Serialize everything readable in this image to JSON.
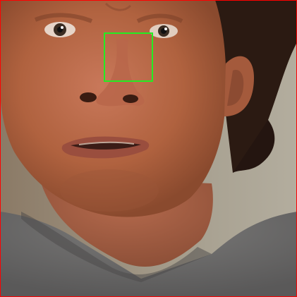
{
  "image": {
    "subject": "face-portrait",
    "colors": {
      "frame": "#ff0000",
      "roi": "#22ee22",
      "background": "#aaa594",
      "skin": "#b86b4f",
      "hair": "#2b1a12",
      "shirt": "#6f6f6f"
    }
  }
}
